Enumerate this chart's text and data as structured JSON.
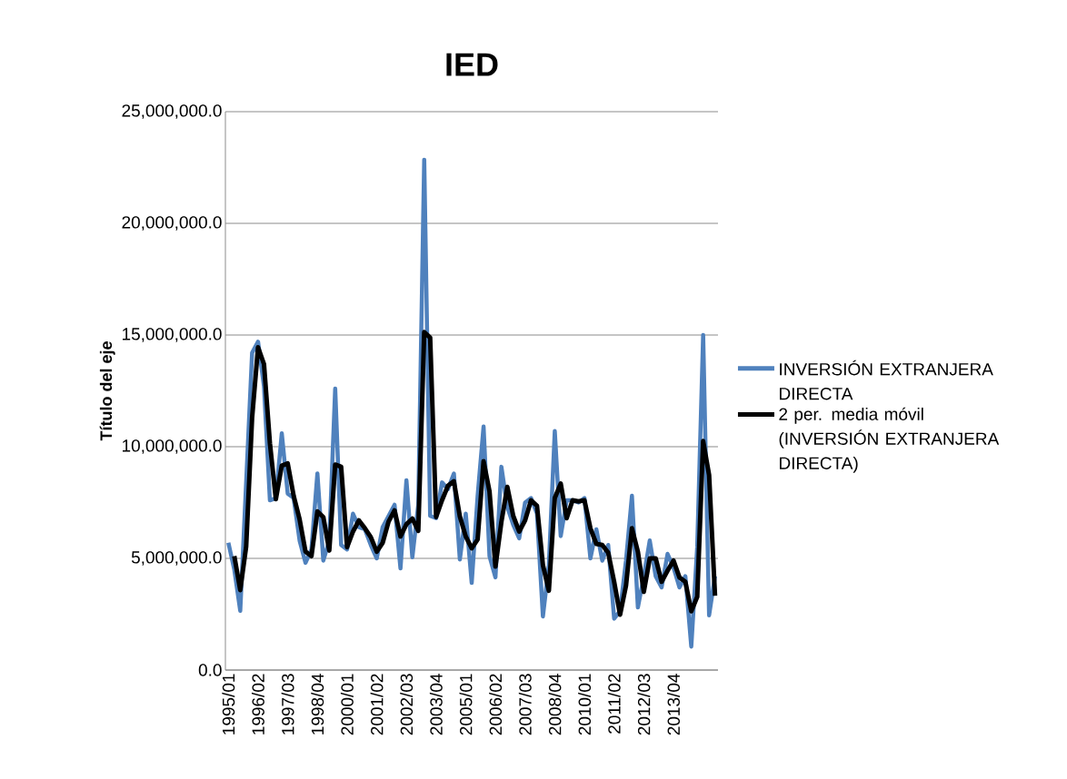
{
  "chart_data": {
    "type": "line",
    "title": "IED",
    "ylabel": "Título del eje",
    "categories": [
      "1995/01",
      null,
      null,
      null,
      null,
      "1996/02",
      null,
      null,
      null,
      null,
      "1997/03",
      null,
      null,
      null,
      null,
      "1998/04",
      null,
      null,
      null,
      null,
      "2000/01",
      null,
      null,
      null,
      null,
      "2001/02",
      null,
      null,
      null,
      null,
      "2002/03",
      null,
      null,
      null,
      null,
      "2003/04",
      null,
      null,
      null,
      null,
      "2005/01",
      null,
      null,
      null,
      null,
      "2006/02",
      null,
      null,
      null,
      null,
      "2007/03",
      null,
      null,
      null,
      null,
      "2008/04",
      null,
      null,
      null,
      null,
      "2010/01",
      null,
      null,
      null,
      null,
      "2011/02",
      null,
      null,
      null,
      null,
      "2012/03",
      null,
      null,
      null,
      null,
      "2013/04",
      null,
      null,
      null,
      null,
      null,
      null,
      null
    ],
    "series": [
      {
        "name": "INVERSIÓN EXTRANJERA DIRECTA",
        "color": "#4f81bd",
        "values": [
          5700000,
          4500000,
          2650000,
          8400000,
          14200000,
          14700000,
          12700000,
          7600000,
          7700000,
          10600000,
          7900000,
          7700000,
          5800000,
          4800000,
          5400000,
          8800000,
          4900000,
          5800000,
          12600000,
          5600000,
          5400000,
          7000000,
          6400000,
          6300000,
          5600000,
          5000000,
          6400000,
          6900000,
          7400000,
          4550000,
          8500000,
          5050000,
          7400000,
          22850000,
          6900000,
          6800000,
          8400000,
          8100000,
          8800000,
          4950000,
          7000000,
          3900000,
          7800000,
          10900000,
          5100000,
          4150000,
          9100000,
          7300000,
          6500000,
          5900000,
          7500000,
          7700000,
          7000000,
          2400000,
          4700000,
          10700000,
          6000000,
          7600000,
          7600000,
          7500000,
          7700000,
          5000000,
          6300000,
          4900000,
          5600000,
          2300000,
          2650000,
          4900000,
          7800000,
          2800000,
          4200000,
          5800000,
          4200000,
          3700000,
          5200000,
          4600000,
          3700000,
          4200000,
          1050000,
          5500000,
          15000000,
          2450000,
          4200000
        ]
      },
      {
        "name": "2 per. media móvil (INVERSIÓN EXTRANJERA DIRECTA)",
        "color": "#000000",
        "values": [
          null,
          5100000,
          3580000,
          5530000,
          11300000,
          14450000,
          13700000,
          10150000,
          7650000,
          9150000,
          9250000,
          7800000,
          6750000,
          5300000,
          5100000,
          7100000,
          6850000,
          5350000,
          9200000,
          9100000,
          5500000,
          6200000,
          6700000,
          6350000,
          5950000,
          5300000,
          5700000,
          6650000,
          7150000,
          5980000,
          6530000,
          6780000,
          6230000,
          15130000,
          14880000,
          6850000,
          7600000,
          8250000,
          8450000,
          6880000,
          5980000,
          5450000,
          5850000,
          9350000,
          8000000,
          4630000,
          6630000,
          8200000,
          6900000,
          6200000,
          6700000,
          7600000,
          7350000,
          4700000,
          3550000,
          7700000,
          8350000,
          6800000,
          7600000,
          7550000,
          7600000,
          6350000,
          5650000,
          5600000,
          5250000,
          3950000,
          2480000,
          3780000,
          6350000,
          5300000,
          3500000,
          5000000,
          5000000,
          3950000,
          4450000,
          4900000,
          4150000,
          3950000,
          2630000,
          3280000,
          10250000,
          8730000,
          3330000
        ]
      }
    ],
    "ylim": [
      0,
      25000000
    ],
    "yticks": [
      {
        "value": 0,
        "label": "0.0"
      },
      {
        "value": 5000000,
        "label": "5,000,000.0"
      },
      {
        "value": 10000000,
        "label": "10,000,000.0"
      },
      {
        "value": 15000000,
        "label": "15,000,000.0"
      },
      {
        "value": 20000000,
        "label": "20,000,000.0"
      },
      {
        "value": 25000000,
        "label": "25,000,000.0"
      }
    ],
    "grid": "y",
    "legend": "right"
  }
}
